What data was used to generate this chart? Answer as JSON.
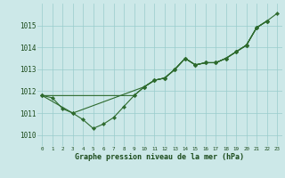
{
  "title": "Graphe pression niveau de la mer (hPa)",
  "bg_color": "#cce8e8",
  "grid_color": "#99cccc",
  "line_color": "#2d6a2d",
  "marker": "D",
  "markersize": 2.2,
  "linewidth": 0.8,
  "xlim": [
    -0.5,
    23.5
  ],
  "ylim": [
    1009.5,
    1016.0
  ],
  "xticks": [
    0,
    1,
    2,
    3,
    4,
    5,
    6,
    7,
    8,
    9,
    10,
    11,
    12,
    13,
    14,
    15,
    16,
    17,
    18,
    19,
    20,
    21,
    22,
    23
  ],
  "yticks": [
    1010,
    1011,
    1012,
    1013,
    1014,
    1015
  ],
  "series": [
    {
      "x": [
        0,
        1,
        2,
        3,
        4,
        5,
        6,
        7,
        8,
        9,
        10,
        11,
        12,
        13,
        14,
        15,
        16,
        17,
        18,
        19,
        20,
        21,
        22
      ],
      "y": [
        1011.8,
        1011.7,
        1011.2,
        1011.0,
        1010.7,
        1010.3,
        1010.5,
        1010.8,
        1011.3,
        1011.8,
        1012.2,
        1012.5,
        1012.6,
        1013.0,
        1013.5,
        1013.2,
        1013.3,
        1013.3,
        1013.5,
        1013.8,
        1014.1,
        1014.9,
        1015.2
      ]
    },
    {
      "x": [
        0,
        3,
        10,
        11,
        12,
        13,
        14,
        15,
        16,
        17,
        18,
        19,
        20,
        21,
        22
      ],
      "y": [
        1011.8,
        1011.0,
        1012.2,
        1012.5,
        1012.6,
        1013.0,
        1013.5,
        1013.2,
        1013.3,
        1013.3,
        1013.5,
        1013.8,
        1014.1,
        1014.9,
        1015.2
      ]
    },
    {
      "x": [
        0,
        9,
        10,
        11,
        12,
        13,
        14,
        15,
        16,
        17,
        18,
        19,
        20,
        21,
        22
      ],
      "y": [
        1011.8,
        1011.8,
        1012.2,
        1012.5,
        1012.6,
        1013.0,
        1013.5,
        1013.2,
        1013.3,
        1013.3,
        1013.5,
        1013.8,
        1014.1,
        1014.9,
        1015.2
      ]
    },
    {
      "x": [
        10,
        11,
        12,
        13,
        14,
        15,
        16,
        17,
        18,
        19,
        20,
        21,
        22,
        23
      ],
      "y": [
        1012.2,
        1012.5,
        1012.6,
        1013.0,
        1013.5,
        1013.2,
        1013.3,
        1013.3,
        1013.5,
        1013.8,
        1014.1,
        1014.9,
        1015.2,
        1015.55
      ]
    }
  ]
}
